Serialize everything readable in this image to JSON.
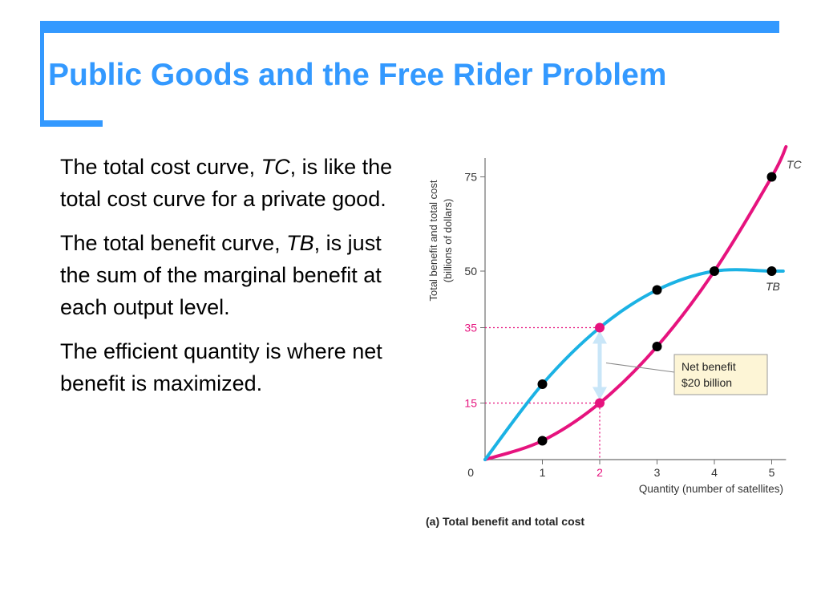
{
  "slide": {
    "title": "Public Goods and the Free Rider Problem",
    "accent_color": "#3399ff",
    "paragraphs": [
      {
        "pre": "The total cost curve, ",
        "em": "TC",
        "post": ", is like the total cost curve for a private good."
      },
      {
        "pre": "The total benefit curve, ",
        "em": "TB",
        "post": ", is just the sum of the marginal benefit at each output level."
      },
      {
        "pre": "The efficient quantity is where net benefit is maximized.",
        "em": "",
        "post": ""
      }
    ]
  },
  "chart_data": {
    "type": "line",
    "caption": "(a) Total benefit and total cost",
    "xlabel": "Quantity (number of satellites)",
    "ylabel_line1": "Total benefit and total cost",
    "ylabel_line2": "(billions of dollars)",
    "origin_label": "0",
    "xlim": [
      0,
      5.25
    ],
    "ylim": [
      0,
      80
    ],
    "xticks": [
      1,
      2,
      3,
      4,
      5
    ],
    "yticks": [
      15,
      35,
      50,
      75
    ],
    "highlight_x": 2,
    "highlight_ys": [
      15,
      35
    ],
    "highlight_color": "#e6137e",
    "series": [
      {
        "name": "TC",
        "color": "#e6137e",
        "curve_x": [
          0,
          1,
          2,
          3,
          4,
          5,
          5.25
        ],
        "curve_y": [
          0,
          5,
          15,
          30,
          50,
          75,
          83
        ],
        "points_x": [
          1,
          3,
          5
        ],
        "points_y": [
          5,
          30,
          75
        ],
        "point_color": "#000000"
      },
      {
        "name": "TB",
        "color": "#1bb2e4",
        "curve_x": [
          0,
          1,
          2,
          3,
          4,
          5,
          5.2
        ],
        "curve_y": [
          0,
          20,
          35,
          45,
          50,
          50,
          50
        ],
        "points_x": [
          1,
          3,
          4,
          5
        ],
        "points_y": [
          20,
          45,
          50,
          50
        ],
        "point_color": "#000000"
      }
    ],
    "annotation": {
      "line1": "Net benefit",
      "line2": "$20 billion",
      "at_x": 2,
      "from_y": 15,
      "to_y": 35,
      "box_fill": "#fdf5d6",
      "arrow_color": "#c9e6f8"
    }
  }
}
